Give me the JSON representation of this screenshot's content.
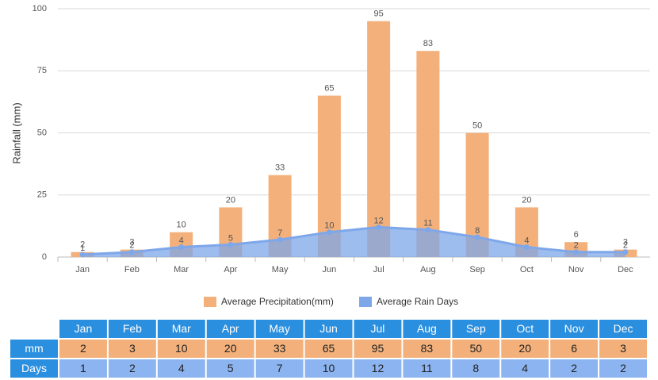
{
  "chart_data": {
    "type": "bar_area",
    "y_label": "Rainfall (mm)",
    "categories": [
      "Jan",
      "Feb",
      "Mar",
      "Apr",
      "May",
      "Jun",
      "Jul",
      "Aug",
      "Sep",
      "Oct",
      "Nov",
      "Dec"
    ],
    "series": [
      {
        "name": "Average Precipitation(mm)",
        "color": "#f3b07a",
        "values": [
          2,
          3,
          10,
          20,
          33,
          65,
          95,
          83,
          50,
          20,
          6,
          3
        ]
      },
      {
        "name": "Average Rain Days",
        "color": "#7ea7ea",
        "values": [
          1,
          2,
          4,
          5,
          7,
          10,
          12,
          11,
          8,
          4,
          2,
          2
        ]
      }
    ],
    "ylim": [
      0,
      100
    ],
    "yticks": [
      0,
      25,
      50,
      75,
      100
    ],
    "grid": true
  },
  "table": {
    "row_labels": [
      "mm",
      "Days"
    ]
  }
}
